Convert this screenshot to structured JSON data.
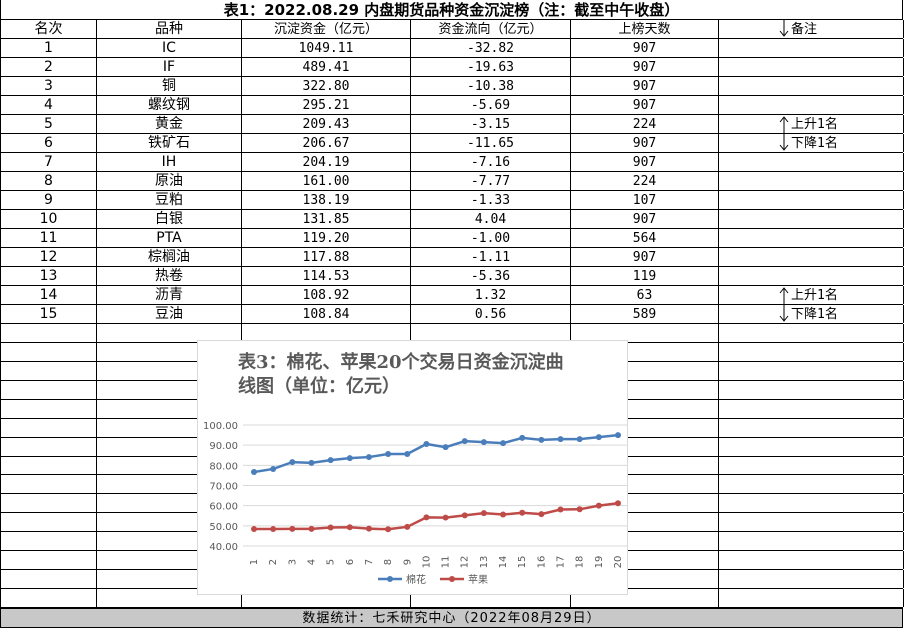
{
  "table": {
    "title": "表1：2022.08.29 内盘期货品种资金沉淀榜（注：截至中午收盘）",
    "header": [
      "名次",
      "品种",
      "沉淀资金（亿元）",
      "资金流向（亿元）",
      "上榜天数",
      "备注"
    ],
    "rows": [
      [
        "1",
        "IC",
        "1049.11",
        "-32.82",
        "907",
        ""
      ],
      [
        "2",
        "IF",
        "489.41",
        "-19.63",
        "907",
        ""
      ],
      [
        "3",
        "铜",
        "322.80",
        "-10.38",
        "907",
        ""
      ],
      [
        "4",
        "螺纹钢",
        "295.21",
        "-5.69",
        "907",
        ""
      ],
      [
        "5",
        "黄金",
        "209.43",
        "-3.15",
        "224",
        "上升1名"
      ],
      [
        "6",
        "铁矿石",
        "206.67",
        "-11.65",
        "907",
        "下降1名"
      ],
      [
        "7",
        "IH",
        "204.19",
        "-7.16",
        "907",
        ""
      ],
      [
        "8",
        "原油",
        "161.00",
        "-7.77",
        "224",
        ""
      ],
      [
        "9",
        "豆粕",
        "138.19",
        "-1.33",
        "107",
        ""
      ],
      [
        "10",
        "白银",
        "131.85",
        "4.04",
        "907",
        ""
      ],
      [
        "11",
        "PTA",
        "119.20",
        "-1.00",
        "564",
        ""
      ],
      [
        "12",
        "棕榈油",
        "117.88",
        "-1.11",
        "907",
        ""
      ],
      [
        "13",
        "热卷",
        "114.53",
        "-5.36",
        "119",
        ""
      ],
      [
        "14",
        "沥青",
        "108.92",
        "1.32",
        "63",
        "上升1名"
      ],
      [
        "15",
        "豆油",
        "108.84",
        "0.56",
        "589",
        "下降1名"
      ]
    ],
    "footer": "数据统计：七禾研究中心（2022年08月29日）"
  },
  "chart_data": {
    "type": "line",
    "title": "表3：棉花、苹果20个交易日资金沉淀曲线图（单位：亿元）",
    "categories": [
      "1",
      "2",
      "3",
      "4",
      "5",
      "6",
      "7",
      "8",
      "9",
      "10",
      "11",
      "12",
      "13",
      "14",
      "15",
      "16",
      "17",
      "18",
      "19",
      "20"
    ],
    "series": [
      {
        "name": "棉花",
        "color": "#4a7ebb",
        "values": [
          76.7,
          78.2,
          81.6,
          81.2,
          82.6,
          83.6,
          84.1,
          85.6,
          85.6,
          90.6,
          89.0,
          92.0,
          91.5,
          91.0,
          93.6,
          92.6,
          93.0,
          93.0,
          94.0,
          95.0
        ]
      },
      {
        "name": "苹果",
        "color": "#be4b48",
        "values": [
          48.4,
          48.4,
          48.5,
          48.5,
          49.2,
          49.3,
          48.6,
          48.3,
          49.5,
          54.2,
          54.1,
          55.2,
          56.3,
          55.6,
          56.5,
          55.8,
          58.1,
          58.2,
          60.0,
          61.2
        ]
      }
    ],
    "ylim": [
      40,
      100
    ],
    "yticks": [
      {
        "value": 40,
        "label": "40.00"
      },
      {
        "value": 50,
        "label": "50.00"
      },
      {
        "value": 60,
        "label": "60.00"
      },
      {
        "value": 70,
        "label": "70.00"
      },
      {
        "value": 80,
        "label": "80.00"
      },
      {
        "value": 90,
        "label": "90.00"
      },
      {
        "value": 100,
        "label": "100.00"
      }
    ],
    "grid": true,
    "legend": "bottom"
  }
}
